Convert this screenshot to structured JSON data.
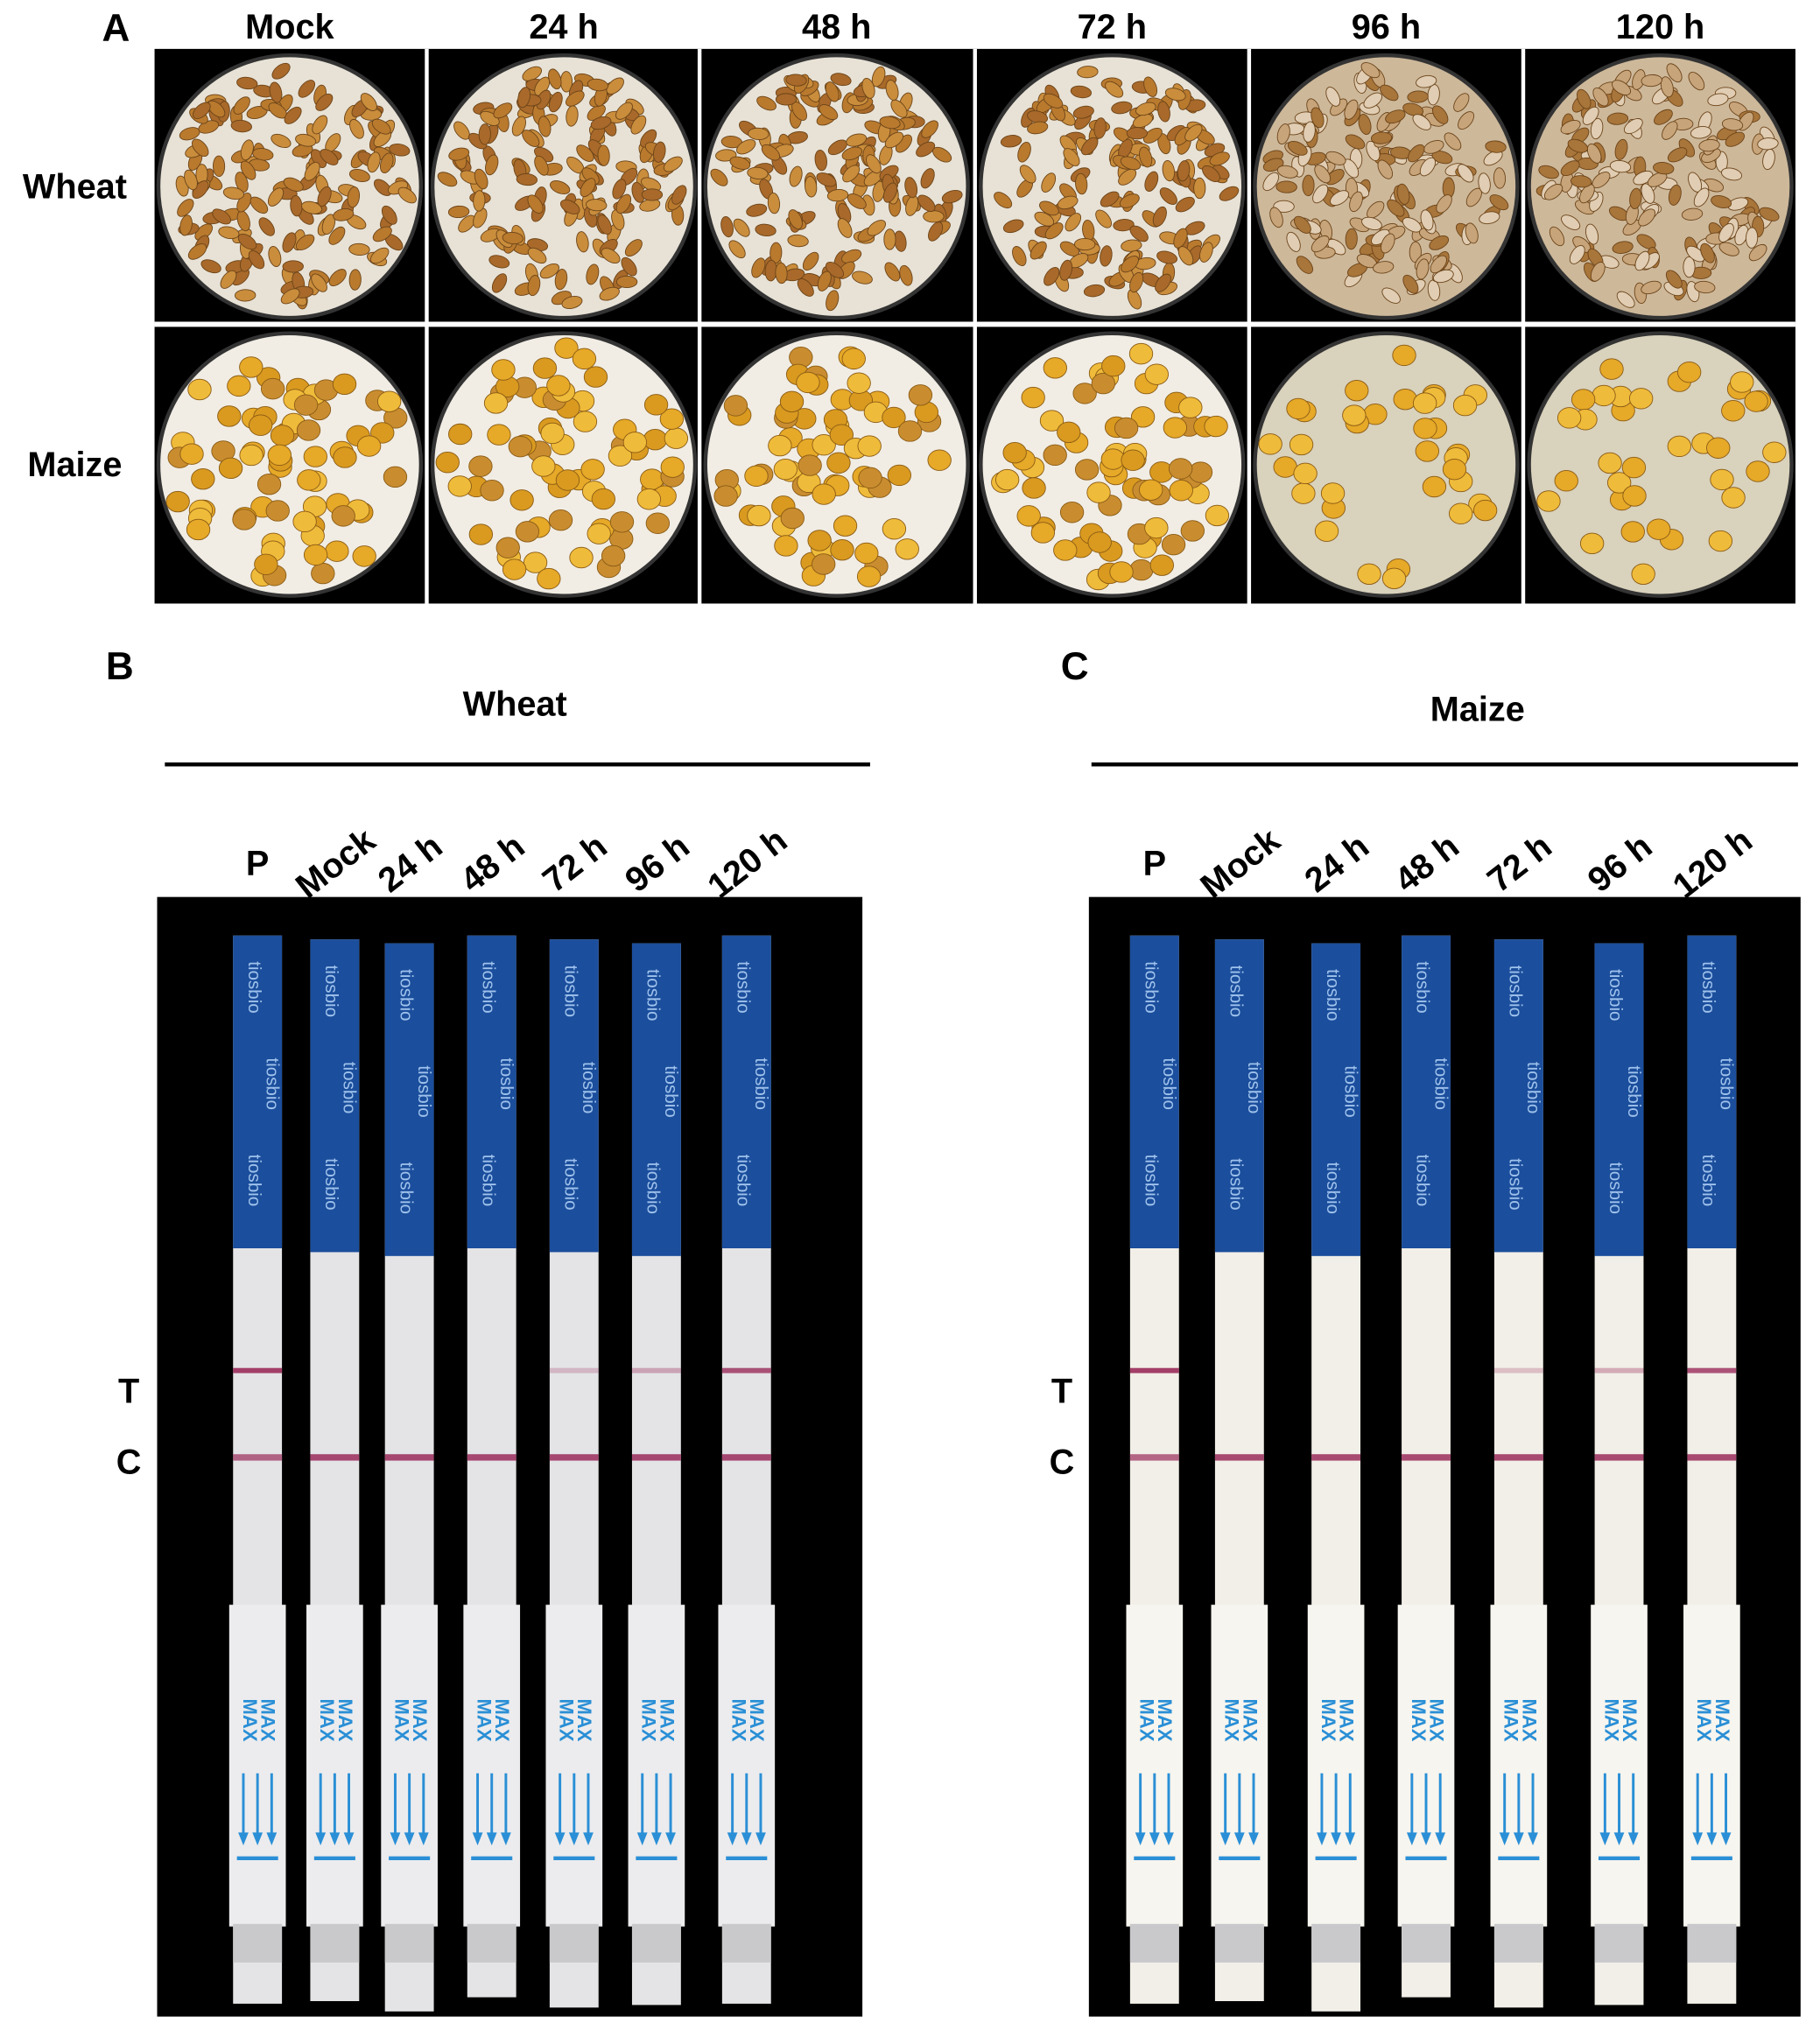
{
  "panel_a": {
    "label": "A",
    "columns": [
      "Mock",
      "24 h",
      "48 h",
      "72 h",
      "96 h",
      "120 h"
    ],
    "rows": [
      "Wheat",
      "Maize"
    ]
  },
  "panel_b": {
    "label": "B",
    "title": "Wheat",
    "lanes": [
      "P",
      "Mock",
      "24 h",
      "48 h",
      "72 h",
      "96 h",
      "120 h"
    ],
    "band_labels": [
      "T",
      "C"
    ]
  },
  "panel_c": {
    "label": "C",
    "title": "Maize",
    "lanes": [
      "P",
      "Mock",
      "24 h",
      "48 h",
      "72 h",
      "96 h",
      "120 h"
    ],
    "band_labels": [
      "T",
      "C"
    ]
  },
  "strip_text": {
    "brand": "tiosbio",
    "mark": "MAX"
  }
}
